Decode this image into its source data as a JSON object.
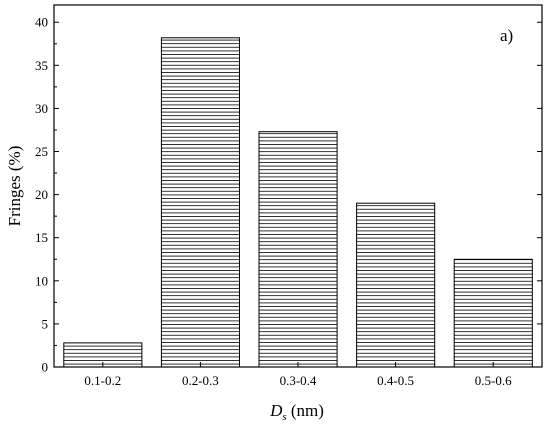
{
  "chart_data": {
    "type": "bar",
    "panel_label": "a)",
    "categories": [
      "0.1-0.2",
      "0.2-0.3",
      "0.3-0.4",
      "0.4-0.5",
      "0.5-0.6"
    ],
    "values": [
      2.8,
      38.2,
      27.3,
      19.0,
      12.5
    ],
    "xlabel": {
      "symbol": "D",
      "subscript": "s",
      "unit": " (nm)"
    },
    "ylabel": "Fringes (%)",
    "ylim": [
      0,
      42
    ],
    "yticks": [
      0,
      5,
      10,
      15,
      20,
      25,
      30,
      35,
      40
    ],
    "bar_fill": "horizontal-hatch",
    "grid": false,
    "legend": "none",
    "colors": {
      "bar_edge": "#000000",
      "hatch": "#000000",
      "background": "#ffffff"
    }
  }
}
